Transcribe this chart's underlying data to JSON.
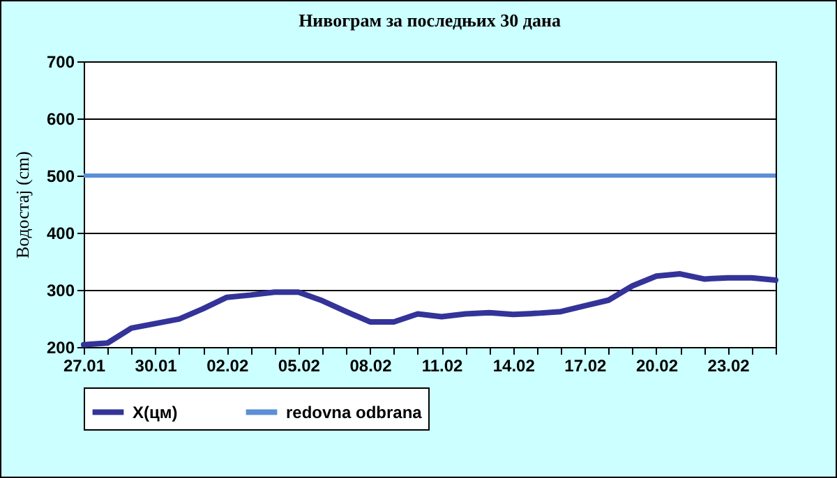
{
  "chart_data": {
    "type": "line",
    "title": "Нивограм за последњих 30 дана",
    "ylabel": "Водостај (cm)",
    "categories": [
      "27.01",
      null,
      null,
      "30.01",
      null,
      null,
      "02.02",
      null,
      null,
      "05.02",
      null,
      null,
      "08.02",
      null,
      null,
      "11.02",
      null,
      null,
      "14.02",
      null,
      null,
      "17.02",
      null,
      null,
      "20.02",
      null,
      null,
      "23.02",
      null,
      null
    ],
    "series": [
      {
        "name": "X(цм)",
        "color": "#333399",
        "values": [
          204,
          207,
          233,
          241,
          249,
          267,
          287,
          291,
          296,
          296,
          281,
          262,
          244,
          244,
          258,
          253,
          258,
          260,
          257,
          259,
          262,
          272,
          282,
          307,
          324,
          328,
          319,
          321,
          321,
          317
        ]
      }
    ],
    "ylim": [
      200,
      700
    ],
    "yticks": [
      200,
      300,
      400,
      500,
      600,
      700
    ],
    "grid": "y",
    "legend": "bottom",
    "ref_lines": [
      {
        "axis": "y",
        "value": 500,
        "label": "redovna odbrana",
        "color": "#5b8fd6"
      }
    ]
  }
}
